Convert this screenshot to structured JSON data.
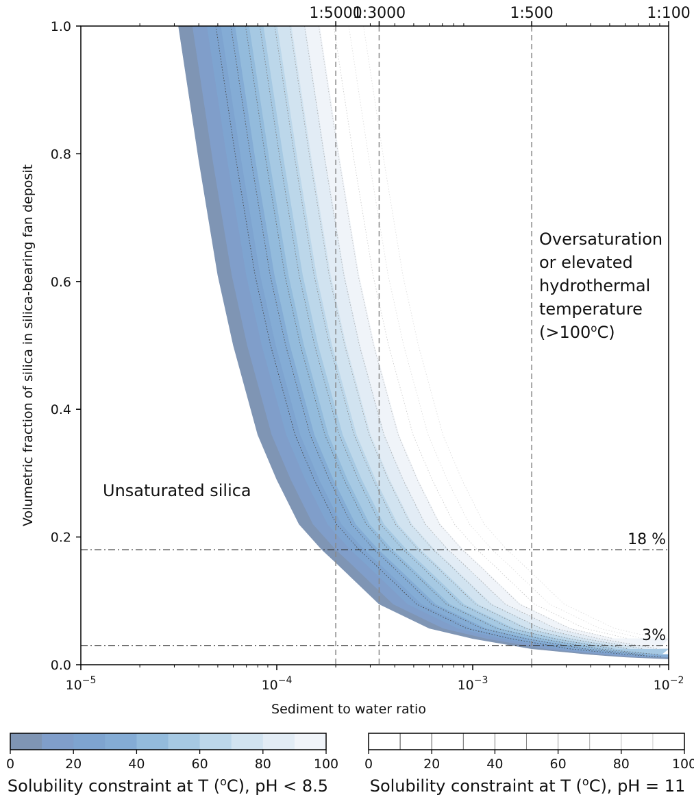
{
  "chart_data": {
    "type": "area",
    "xscale": "log",
    "xlabel": "Sediment to water ratio",
    "ylabel": "Volumetric fraction of silica in silica-bearing fan deposit",
    "xlim": [
      1e-05,
      0.01
    ],
    "ylim": [
      0,
      1
    ],
    "x_ticks": [
      {
        "value": 1e-05,
        "base": "10",
        "exp": "−5"
      },
      {
        "value": 0.0001,
        "base": "10",
        "exp": "−4"
      },
      {
        "value": 0.001,
        "base": "10",
        "exp": "−3"
      },
      {
        "value": 0.01,
        "base": "10",
        "exp": "−2"
      }
    ],
    "y_ticks": [
      "0.0",
      "0.2",
      "0.4",
      "0.6",
      "0.8",
      "1.0"
    ],
    "y_tick_values": [
      0,
      0.2,
      0.4,
      0.6,
      0.8,
      1.0
    ],
    "top_ratio_labels": [
      {
        "x": 0.0002,
        "label": "1:5000"
      },
      {
        "x": 0.000333,
        "label": "1:3000"
      },
      {
        "x": 0.002,
        "label": "1:500"
      },
      {
        "x": 0.01,
        "label": "1:100"
      }
    ],
    "reference_lines": [
      {
        "y": 0.18,
        "label": "18 %"
      },
      {
        "y": 0.03,
        "label": "3%"
      }
    ],
    "band_fill_colors": [
      "#7f95b4",
      "#809eca",
      "#7ea4d0",
      "#84acd5",
      "#93bbdc",
      "#a6c9e3",
      "#bcd7ea",
      "#d1e3f0",
      "#e2ecf5",
      "#f0f4f9"
    ],
    "band_tail_ratio": 0.93,
    "series_ph85": [
      {
        "temperature": 0,
        "x": [
          3.15e-05,
          4e-05,
          5e-05,
          6e-05,
          8e-05,
          0.0001,
          0.00013,
          0.00017,
          0.0002,
          0.000333,
          0.0006,
          0.001,
          0.002,
          0.004,
          0.006,
          0.01
        ],
        "y": [
          1.0,
          0.79,
          0.61,
          0.5,
          0.36,
          0.29,
          0.22,
          0.18,
          0.16,
          0.095,
          0.057,
          0.041,
          0.025,
          0.016,
          0.012,
          0.009
        ]
      },
      {
        "temperature": 10,
        "x_factor": 1.18
      },
      {
        "temperature": 20,
        "x_factor": 1.4
      },
      {
        "temperature": 30,
        "x_factor": 1.65
      },
      {
        "temperature": 40,
        "x_factor": 1.95
      },
      {
        "temperature": 50,
        "x_factor": 2.3
      },
      {
        "temperature": 60,
        "x_factor": 2.72
      },
      {
        "temperature": 70,
        "x_factor": 3.2
      },
      {
        "temperature": 80,
        "x_factor": 3.78
      },
      {
        "temperature": 90,
        "x_factor": 4.45
      },
      {
        "temperature": 100,
        "x_factor": 5.25
      }
    ],
    "series_ph11_x_factors": [
      1.55,
      1.85,
      2.2,
      2.6,
      3.1,
      3.7,
      4.4,
      5.2,
      6.2,
      7.4,
      8.8
    ],
    "annotations": [
      {
        "text": "Unsaturated silica"
      },
      {
        "text": "Oversaturation"
      },
      {
        "text": "or elevated"
      },
      {
        "text": "hydrothermal"
      },
      {
        "text": "temperature"
      },
      {
        "text": "(>100"
      }
    ],
    "colorbar_left": {
      "title": "Solubility constraint at T (",
      "title_sup": "o",
      "title_end": "C), pH < 8.5",
      "ticks": [
        "0",
        "20",
        "40",
        "60",
        "80",
        "100"
      ],
      "colors": [
        "#7f95b4",
        "#809eca",
        "#7ea4d0",
        "#84acd5",
        "#93bbdc",
        "#a6c9e3",
        "#bcd7ea",
        "#d1e3f0",
        "#e2ecf5",
        "#f0f4f9"
      ]
    },
    "colorbar_right": {
      "title": "Solubility constraint at T (",
      "title_sup": "o",
      "title_end": "C), pH = 11",
      "ticks": [
        "0",
        "20",
        "40",
        "60",
        "80",
        "100"
      ],
      "line_colors": [
        "#444444",
        "#555555",
        "#666666",
        "#777777",
        "#888888",
        "#999999",
        "#aaaaaa",
        "#bbbbbb",
        "#cccccc",
        "#dddddd"
      ]
    }
  }
}
